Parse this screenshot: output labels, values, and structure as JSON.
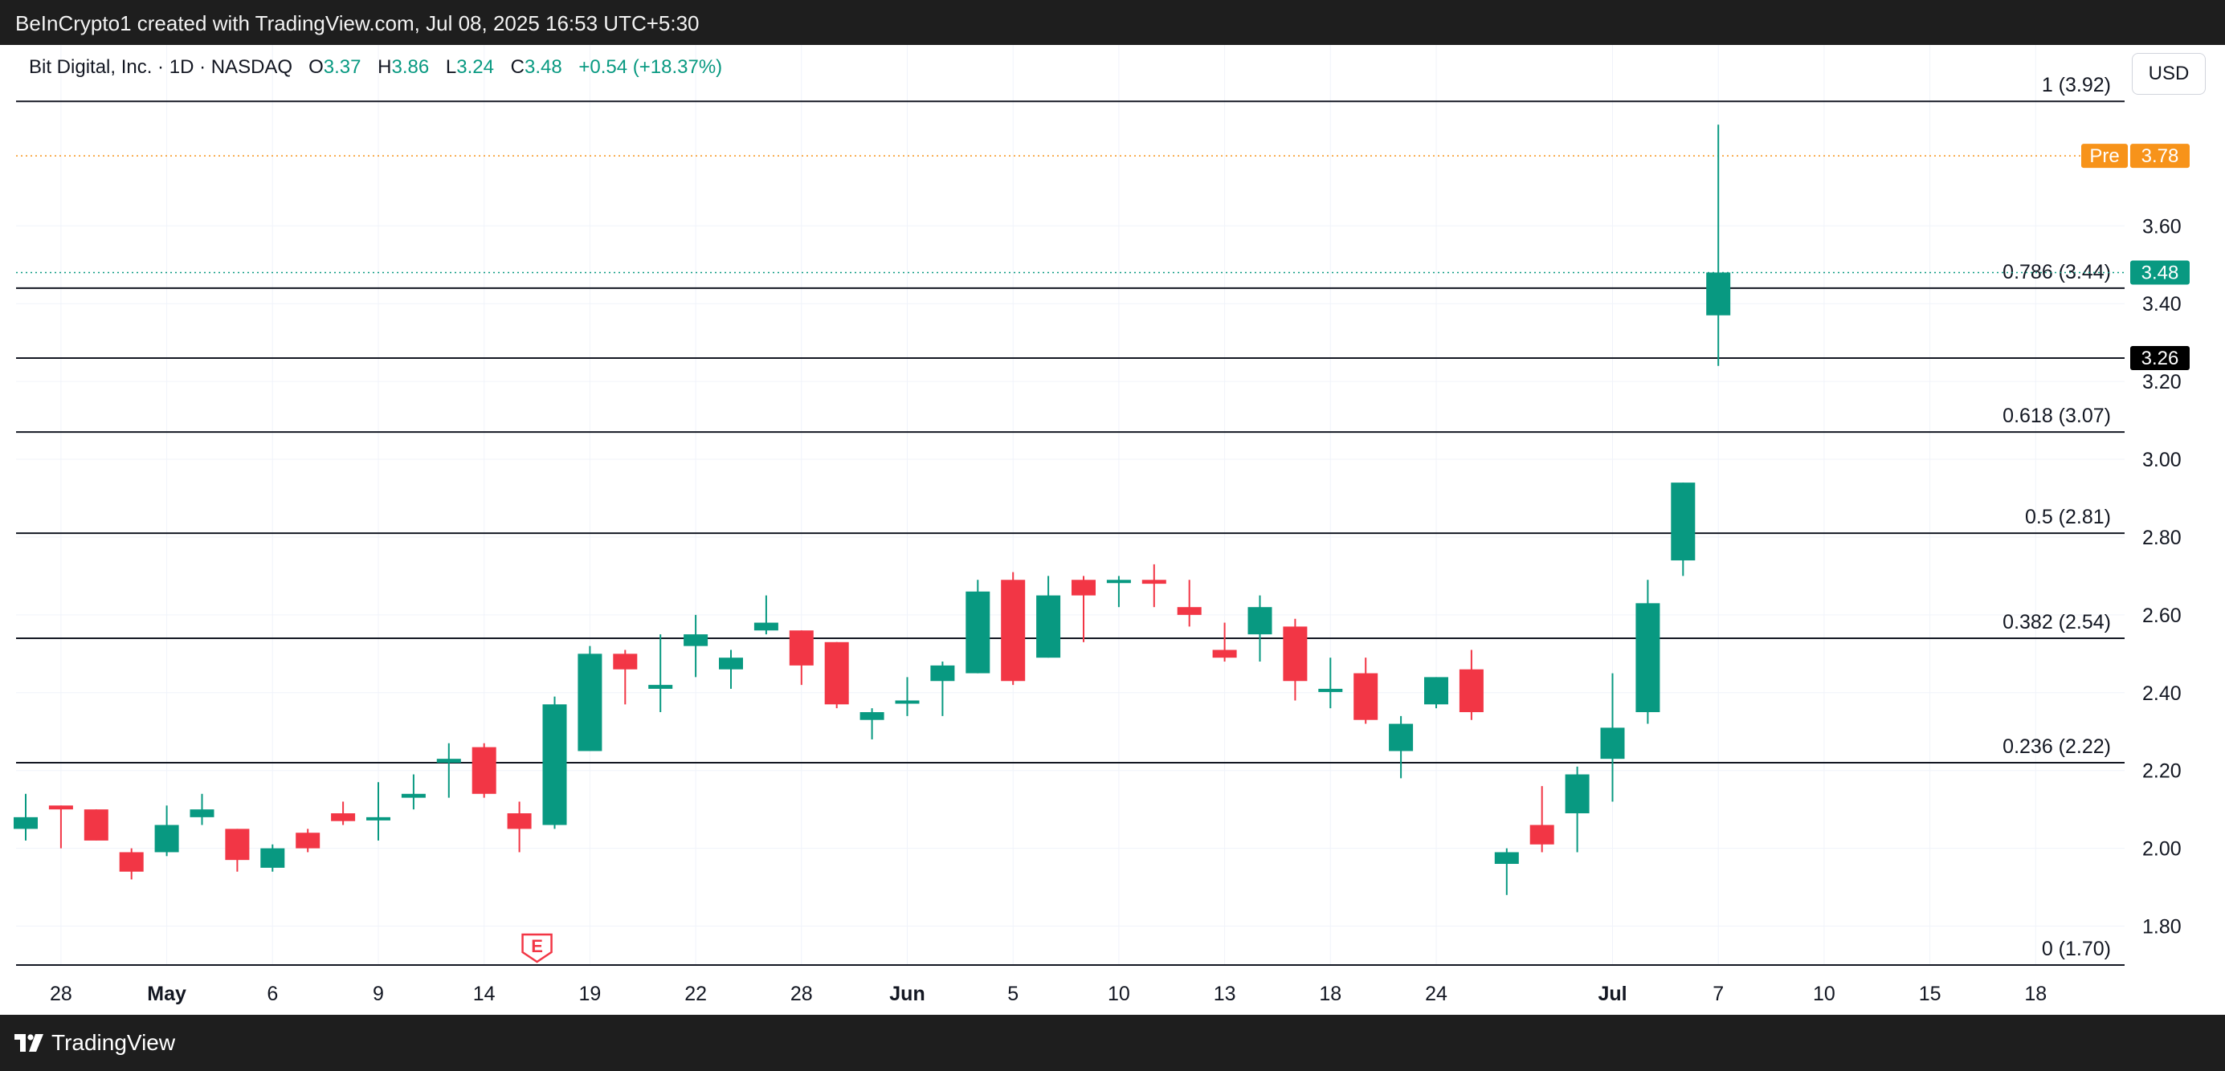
{
  "header": {
    "credit": "BeInCrypto1 created with TradingView.com, Jul 08, 2025 16:53 UTC+5:30"
  },
  "legend": {
    "symbol": "Bit Digital, Inc. · 1D · NASDAQ",
    "open_label": "O",
    "open": "3.37",
    "high_label": "H",
    "high": "3.86",
    "low_label": "L",
    "low": "3.24",
    "close_label": "C",
    "close": "3.48",
    "change": "+0.54 (+18.37%)"
  },
  "currency_button": "USD",
  "footer": {
    "brand": "TradingView"
  },
  "colors": {
    "up": "#089981",
    "down": "#f23645",
    "premarket": "#f7931a",
    "fib_line": "#131722",
    "grid": "#f0f3fa"
  },
  "chart_data": {
    "type": "candlestick",
    "title": "",
    "ylim": [
      1.7,
      3.97
    ],
    "y_ticks": [
      "1.80",
      "2.00",
      "2.20",
      "2.40",
      "2.60",
      "2.80",
      "3.00",
      "3.20",
      "3.40",
      "3.60"
    ],
    "x_tick_labels": [
      {
        "label": "28",
        "bold": false,
        "index": 1
      },
      {
        "label": "May",
        "bold": true,
        "index": 4
      },
      {
        "label": "6",
        "bold": false,
        "index": 7
      },
      {
        "label": "9",
        "bold": false,
        "index": 10
      },
      {
        "label": "14",
        "bold": false,
        "index": 13
      },
      {
        "label": "19",
        "bold": false,
        "index": 16
      },
      {
        "label": "22",
        "bold": false,
        "index": 19
      },
      {
        "label": "28",
        "bold": false,
        "index": 22
      },
      {
        "label": "Jun",
        "bold": true,
        "index": 25
      },
      {
        "label": "5",
        "bold": false,
        "index": 28
      },
      {
        "label": "10",
        "bold": false,
        "index": 31
      },
      {
        "label": "13",
        "bold": false,
        "index": 34
      },
      {
        "label": "18",
        "bold": false,
        "index": 37
      },
      {
        "label": "24",
        "bold": false,
        "index": 40
      },
      {
        "label": "Jul",
        "bold": true,
        "index": 45
      },
      {
        "label": "7",
        "bold": false,
        "index": 48
      },
      {
        "label": "10",
        "bold": false,
        "index": 51
      },
      {
        "label": "15",
        "bold": false,
        "index": 54
      },
      {
        "label": "18",
        "bold": false,
        "index": 57
      }
    ],
    "candles": [
      {
        "o": 2.05,
        "h": 2.14,
        "l": 2.02,
        "c": 2.08
      },
      {
        "o": 2.11,
        "h": 2.11,
        "l": 2.0,
        "c": 2.1
      },
      {
        "o": 2.1,
        "h": 2.1,
        "l": 2.02,
        "c": 2.02
      },
      {
        "o": 1.99,
        "h": 2.0,
        "l": 1.92,
        "c": 1.94
      },
      {
        "o": 1.99,
        "h": 2.11,
        "l": 1.98,
        "c": 2.06
      },
      {
        "o": 2.08,
        "h": 2.14,
        "l": 2.06,
        "c": 2.1
      },
      {
        "o": 2.05,
        "h": 2.05,
        "l": 1.94,
        "c": 1.97
      },
      {
        "o": 1.95,
        "h": 2.01,
        "l": 1.94,
        "c": 2.0
      },
      {
        "o": 2.04,
        "h": 2.05,
        "l": 1.99,
        "c": 2.0
      },
      {
        "o": 2.09,
        "h": 2.12,
        "l": 2.06,
        "c": 2.07
      },
      {
        "o": 2.08,
        "h": 2.17,
        "l": 2.02,
        "c": 2.08
      },
      {
        "o": 2.13,
        "h": 2.19,
        "l": 2.1,
        "c": 2.14
      },
      {
        "o": 2.22,
        "h": 2.27,
        "l": 2.13,
        "c": 2.23
      },
      {
        "o": 2.26,
        "h": 2.27,
        "l": 2.13,
        "c": 2.14
      },
      {
        "o": 2.09,
        "h": 2.12,
        "l": 1.99,
        "c": 2.05
      },
      {
        "o": 2.06,
        "h": 2.39,
        "l": 2.05,
        "c": 2.37
      },
      {
        "o": 2.25,
        "h": 2.52,
        "l": 2.25,
        "c": 2.5
      },
      {
        "o": 2.5,
        "h": 2.51,
        "l": 2.37,
        "c": 2.46
      },
      {
        "o": 2.41,
        "h": 2.55,
        "l": 2.35,
        "c": 2.42
      },
      {
        "o": 2.52,
        "h": 2.6,
        "l": 2.44,
        "c": 2.55
      },
      {
        "o": 2.46,
        "h": 2.51,
        "l": 2.41,
        "c": 2.49
      },
      {
        "o": 2.56,
        "h": 2.65,
        "l": 2.55,
        "c": 2.58
      },
      {
        "o": 2.56,
        "h": 2.56,
        "l": 2.42,
        "c": 2.47
      },
      {
        "o": 2.53,
        "h": 2.53,
        "l": 2.36,
        "c": 2.37
      },
      {
        "o": 2.33,
        "h": 2.36,
        "l": 2.28,
        "c": 2.35
      },
      {
        "o": 2.38,
        "h": 2.44,
        "l": 2.34,
        "c": 2.38
      },
      {
        "o": 2.43,
        "h": 2.48,
        "l": 2.34,
        "c": 2.47
      },
      {
        "o": 2.45,
        "h": 2.69,
        "l": 2.45,
        "c": 2.66
      },
      {
        "o": 2.69,
        "h": 2.71,
        "l": 2.42,
        "c": 2.43
      },
      {
        "o": 2.49,
        "h": 2.7,
        "l": 2.49,
        "c": 2.65
      },
      {
        "o": 2.69,
        "h": 2.7,
        "l": 2.53,
        "c": 2.65
      },
      {
        "o": 2.69,
        "h": 2.7,
        "l": 2.62,
        "c": 2.69
      },
      {
        "o": 2.69,
        "h": 2.73,
        "l": 2.62,
        "c": 2.68
      },
      {
        "o": 2.62,
        "h": 2.69,
        "l": 2.57,
        "c": 2.6
      },
      {
        "o": 2.51,
        "h": 2.58,
        "l": 2.48,
        "c": 2.49
      },
      {
        "o": 2.55,
        "h": 2.65,
        "l": 2.48,
        "c": 2.62
      },
      {
        "o": 2.57,
        "h": 2.59,
        "l": 2.38,
        "c": 2.43
      },
      {
        "o": 2.41,
        "h": 2.49,
        "l": 2.36,
        "c": 2.41
      },
      {
        "o": 2.45,
        "h": 2.49,
        "l": 2.32,
        "c": 2.33
      },
      {
        "o": 2.25,
        "h": 2.34,
        "l": 2.18,
        "c": 2.32
      },
      {
        "o": 2.37,
        "h": 2.44,
        "l": 2.36,
        "c": 2.44
      },
      {
        "o": 2.46,
        "h": 2.51,
        "l": 2.33,
        "c": 2.35
      },
      {
        "o": 1.96,
        "h": 2.0,
        "l": 1.88,
        "c": 1.99
      },
      {
        "o": 2.06,
        "h": 2.16,
        "l": 1.99,
        "c": 2.01
      },
      {
        "o": 2.09,
        "h": 2.21,
        "l": 1.99,
        "c": 2.19
      },
      {
        "o": 2.23,
        "h": 2.45,
        "l": 2.12,
        "c": 2.31
      },
      {
        "o": 2.35,
        "h": 2.69,
        "l": 2.32,
        "c": 2.63
      },
      {
        "o": 2.74,
        "h": 2.94,
        "l": 2.7,
        "c": 2.94
      },
      {
        "o": 3.37,
        "h": 3.86,
        "l": 3.24,
        "c": 3.48
      }
    ],
    "fib_levels": [
      {
        "ratio": "1",
        "value": 3.92,
        "label": "1 (3.92)"
      },
      {
        "ratio": "0.786",
        "value": 3.44,
        "label": "0.786 (3.44)"
      },
      {
        "ratio": "0.618",
        "value": 3.07,
        "label": "0.618 (3.07)"
      },
      {
        "ratio": "0.5",
        "value": 2.81,
        "label": "0.5 (2.81)"
      },
      {
        "ratio": "0.382",
        "value": 2.54,
        "label": "0.382 (2.54)"
      },
      {
        "ratio": "0.236",
        "value": 2.22,
        "label": "0.236 (2.22)"
      },
      {
        "ratio": "0",
        "value": 1.7,
        "label": "0 (1.70)"
      }
    ],
    "horizontal_line": {
      "value": 3.26,
      "label": "3.26"
    },
    "premarket": {
      "label": "Pre",
      "value": "3.78",
      "price": 3.78
    },
    "last_price": {
      "value": "3.48",
      "price": 3.48
    },
    "earnings_marker": {
      "label": "E",
      "index": 14.5
    }
  }
}
